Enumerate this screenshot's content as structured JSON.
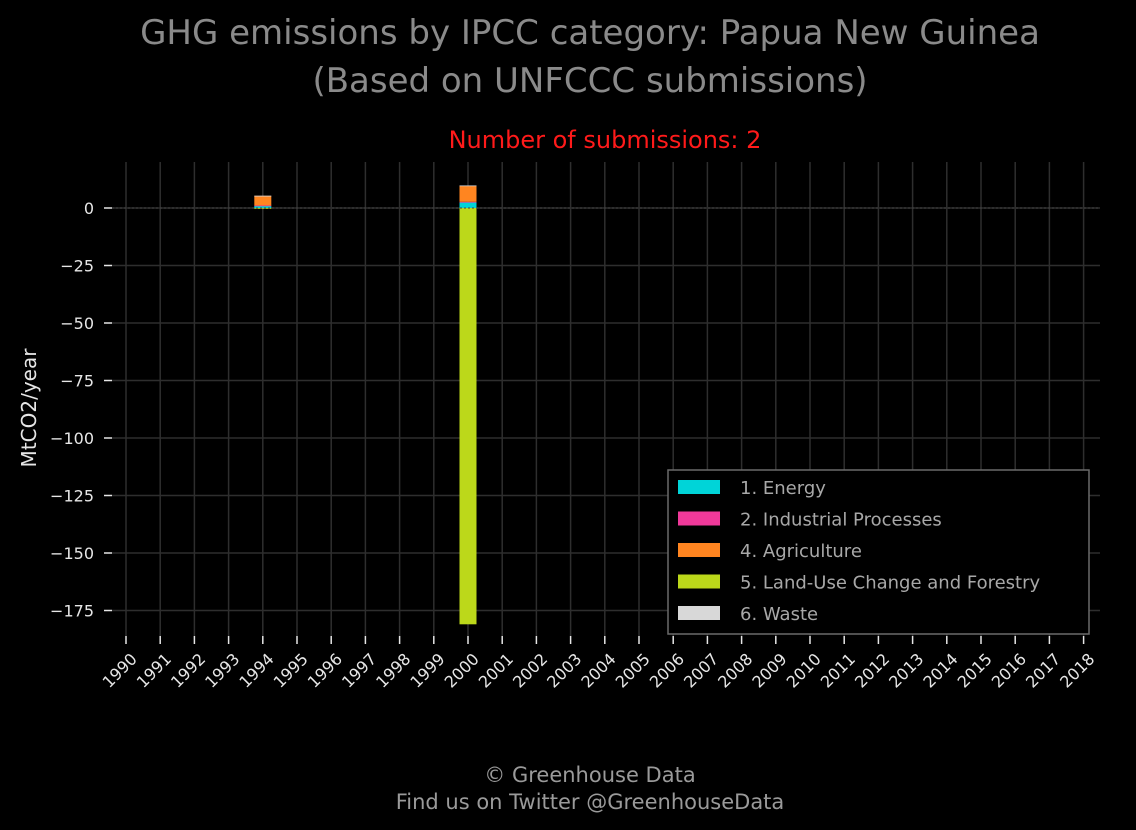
{
  "chart_data": {
    "type": "bar",
    "stacked": true,
    "title_line1": "GHG emissions by IPCC category: Papua New Guinea",
    "title_line2": "(Based on UNFCCC submissions)",
    "subtitle": "Number of submissions: 2",
    "ylabel": "MtCO2/year",
    "xlabel": "",
    "categories": [
      "1990",
      "1991",
      "1992",
      "1993",
      "1994",
      "1995",
      "1996",
      "1997",
      "1998",
      "1999",
      "2000",
      "2001",
      "2002",
      "2003",
      "2004",
      "2005",
      "2006",
      "2007",
      "2008",
      "2009",
      "2010",
      "2011",
      "2012",
      "2013",
      "2014",
      "2015",
      "2016",
      "2017",
      "2018"
    ],
    "ylim": [
      -190,
      20
    ],
    "yticks": [
      0,
      -25,
      -50,
      -75,
      -100,
      -125,
      -150,
      -175
    ],
    "ytick_labels": [
      "0",
      "−25",
      "−50",
      "−75",
      "−100",
      "−125",
      "−150",
      "−175"
    ],
    "grid": true,
    "legend_position": "lower-right",
    "series": [
      {
        "name": "1. Energy",
        "color": "#00d4d8",
        "values": {
          "1994": 1.0,
          "2000": 2.5
        }
      },
      {
        "name": "2. Industrial Processes",
        "color": "#f0399a",
        "values": {
          "1994": 0.1,
          "2000": 0.2
        }
      },
      {
        "name": "4. Agriculture",
        "color": "#ff8520",
        "values": {
          "1994": 4.2,
          "2000": 7.0
        }
      },
      {
        "name": "5. Land-Use Change and Forestry",
        "color": "#bcd81a",
        "values": {
          "1994": -0.3,
          "2000": -181.0
        }
      },
      {
        "name": "6. Waste",
        "color": "#d8d8d8",
        "values": {
          "1994": 0.05,
          "2000": 0.1
        }
      }
    ]
  },
  "footer": {
    "line1": "© Greenhouse Data",
    "line2": "Find us on Twitter @GreenhouseData"
  }
}
